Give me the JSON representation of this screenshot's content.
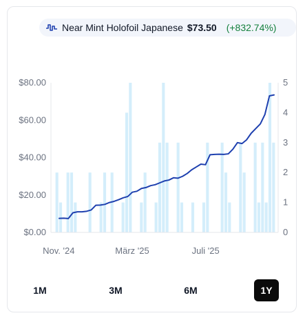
{
  "legend": {
    "icon": "volume-bars-icon",
    "name": "Near Mint Holofoil Japanese",
    "price": "$73.50",
    "change": "(+832.74%)",
    "change_color": "#15803d",
    "line_color": "#1e40af"
  },
  "ranges": {
    "items": [
      "1M",
      "3M",
      "6M",
      "1Y"
    ],
    "active": "1Y"
  },
  "chart_data": {
    "type": "line+bar",
    "x_tick_labels": [
      "Nov. '24",
      "März '25",
      "Juli '25"
    ],
    "x_tick_positions": [
      1,
      21,
      41
    ],
    "y_left": {
      "ticks": [
        "$0.00",
        "$20.00",
        "$40.00",
        "$60.00",
        "$80.00"
      ],
      "range": [
        0,
        80
      ]
    },
    "y_right": {
      "ticks": [
        "0",
        "1",
        "2",
        "3",
        "4",
        "5"
      ],
      "range": [
        0,
        5
      ]
    },
    "grid": false,
    "bar_color": "#d4eefb",
    "series": [
      {
        "kind": "line",
        "axis": "left",
        "values": [
          7.5,
          7.6,
          7.4,
          10.5,
          11.0,
          11.0,
          11.3,
          12.0,
          14.5,
          14.6,
          15.0,
          16.0,
          16.6,
          17.5,
          18.5,
          19.2,
          21.5,
          22.0,
          23.5,
          24.0,
          25.0,
          25.5,
          26.5,
          27.5,
          28.0,
          29.2,
          29.0,
          30.0,
          31.5,
          33.5,
          35.0,
          36.5,
          36.2,
          41.5,
          41.7,
          41.8,
          41.7,
          42.0,
          44.5,
          48.0,
          47.5,
          49.5,
          53.0,
          55.5,
          58.0,
          63.0,
          73.0,
          73.5
        ]
      },
      {
        "kind": "bar",
        "axis": "right",
        "values": [
          2,
          1,
          0,
          2,
          2,
          1,
          0,
          0,
          0,
          2,
          0,
          0,
          1,
          2,
          0,
          2,
          0,
          0,
          1,
          4,
          5,
          0,
          0,
          1,
          2,
          0,
          0,
          1,
          3,
          5,
          3,
          0,
          0,
          3,
          1,
          0,
          0,
          1,
          0,
          0,
          1,
          3,
          0,
          0,
          0,
          3,
          2,
          1,
          0,
          0,
          3,
          2,
          0,
          0,
          3,
          1,
          3,
          1,
          5,
          3
        ]
      }
    ]
  }
}
